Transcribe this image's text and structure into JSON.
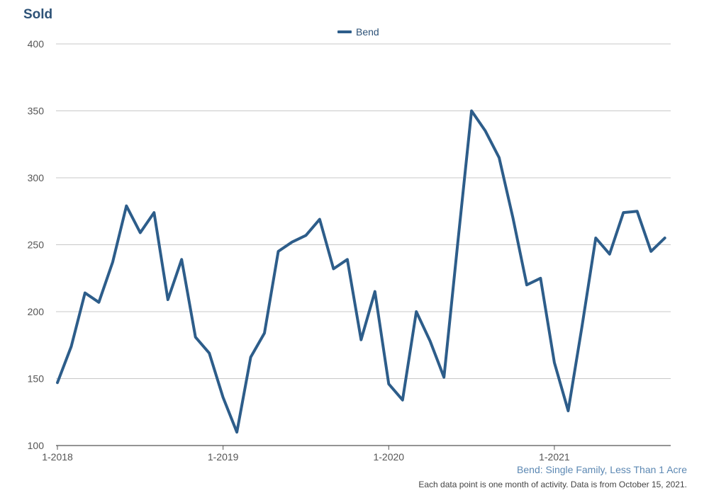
{
  "chart_data": {
    "type": "line",
    "title": "Sold",
    "subtitle": "Bend: Single Family, Less Than 1 Acre",
    "footnote": "Each data point is one month of activity. Data is from October 15, 2021.",
    "xlabel": "",
    "ylabel": "",
    "legend_position": "top-center",
    "grid": true,
    "ylim": [
      100,
      400
    ],
    "yticks": [
      100,
      150,
      200,
      250,
      300,
      350,
      400
    ],
    "xtick_labels": [
      "1-2018",
      "1-2019",
      "1-2020",
      "1-2021"
    ],
    "x": [
      "1-2018",
      "2-2018",
      "3-2018",
      "4-2018",
      "5-2018",
      "6-2018",
      "7-2018",
      "8-2018",
      "9-2018",
      "10-2018",
      "11-2018",
      "12-2018",
      "1-2019",
      "2-2019",
      "3-2019",
      "4-2019",
      "5-2019",
      "6-2019",
      "7-2019",
      "8-2019",
      "9-2019",
      "10-2019",
      "11-2019",
      "12-2019",
      "1-2020",
      "2-2020",
      "3-2020",
      "4-2020",
      "5-2020",
      "6-2020",
      "7-2020",
      "8-2020",
      "9-2020",
      "10-2020",
      "11-2020",
      "12-2020",
      "1-2021",
      "2-2021",
      "3-2021",
      "4-2021",
      "5-2021",
      "6-2021",
      "7-2021",
      "8-2021",
      "9-2021"
    ],
    "series": [
      {
        "name": "Bend",
        "color": "#2d5d8a",
        "values": [
          147,
          174,
          214,
          207,
          237,
          279,
          259,
          274,
          209,
          239,
          181,
          169,
          136,
          110,
          166,
          184,
          245,
          252,
          257,
          269,
          232,
          239,
          179,
          215,
          146,
          134,
          200,
          178,
          151,
          251,
          350,
          335,
          315,
          270,
          220,
          225,
          162,
          126,
          189,
          255,
          243,
          274,
          275,
          245,
          255
        ]
      }
    ]
  }
}
